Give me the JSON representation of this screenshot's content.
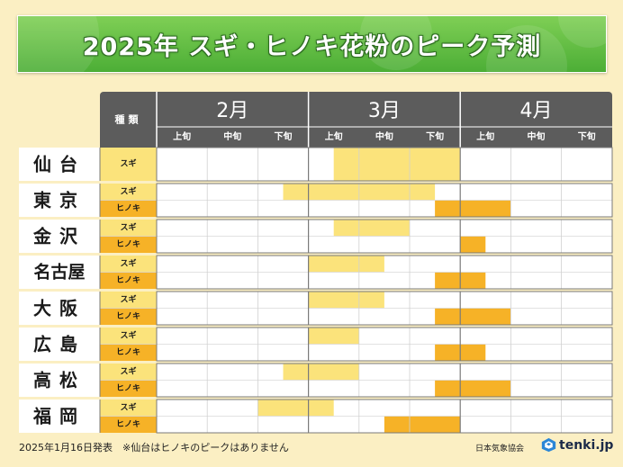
{
  "title": "2025年 スギ・ヒノキ花粉のピーク予測",
  "colors": {
    "sugi": "#fbe37b",
    "hinoki": "#f6b227",
    "header": "#5c5c5c",
    "banner": "#5ab83f",
    "background": "#fbefc3"
  },
  "chart_data": {
    "type": "table",
    "title": "2025年 スギ・ヒノキ花粉のピーク予測",
    "column_header": "種類",
    "months": [
      "2月",
      "3月",
      "4月"
    ],
    "periods": [
      "上旬",
      "中旬",
      "下旬"
    ],
    "period_axis": [
      "2月上旬",
      "2月中旬",
      "2月下旬",
      "3月上旬",
      "3月中旬",
      "3月下旬",
      "4月上旬",
      "4月中旬",
      "4月下旬"
    ],
    "cities": [
      {
        "name": "仙台",
        "rows": [
          {
            "type": "スギ",
            "peak": [
              3.5,
              6.0
            ]
          }
        ]
      },
      {
        "name": "東京",
        "rows": [
          {
            "type": "スギ",
            "peak": [
              2.5,
              5.5
            ]
          },
          {
            "type": "ヒノキ",
            "peak": [
              5.5,
              7.0
            ]
          }
        ]
      },
      {
        "name": "金沢",
        "rows": [
          {
            "type": "スギ",
            "peak": [
              3.5,
              5.0
            ]
          },
          {
            "type": "ヒノキ",
            "peak": [
              6.0,
              6.5
            ]
          }
        ]
      },
      {
        "name": "名古屋",
        "rows": [
          {
            "type": "スギ",
            "peak": [
              3.0,
              4.5
            ]
          },
          {
            "type": "ヒノキ",
            "peak": [
              5.5,
              6.5
            ]
          }
        ]
      },
      {
        "name": "大阪",
        "rows": [
          {
            "type": "スギ",
            "peak": [
              3.0,
              4.5
            ]
          },
          {
            "type": "ヒノキ",
            "peak": [
              5.5,
              7.0
            ]
          }
        ]
      },
      {
        "name": "広島",
        "rows": [
          {
            "type": "スギ",
            "peak": [
              3.0,
              4.0
            ]
          },
          {
            "type": "ヒノキ",
            "peak": [
              5.5,
              6.5
            ]
          }
        ]
      },
      {
        "name": "高松",
        "rows": [
          {
            "type": "スギ",
            "peak": [
              2.5,
              4.0
            ]
          },
          {
            "type": "ヒノキ",
            "peak": [
              5.5,
              7.0
            ]
          }
        ]
      },
      {
        "name": "福岡",
        "rows": [
          {
            "type": "スギ",
            "peak": [
              2.0,
              3.5
            ]
          },
          {
            "type": "ヒノキ",
            "peak": [
              4.5,
              6.0
            ]
          }
        ]
      }
    ],
    "grid": true
  },
  "footer": {
    "date": "2025年1月16日発表",
    "note": "※仙台はヒノキのピークはありません",
    "jma": "日本気象協会",
    "brand": "tenki.jp"
  }
}
